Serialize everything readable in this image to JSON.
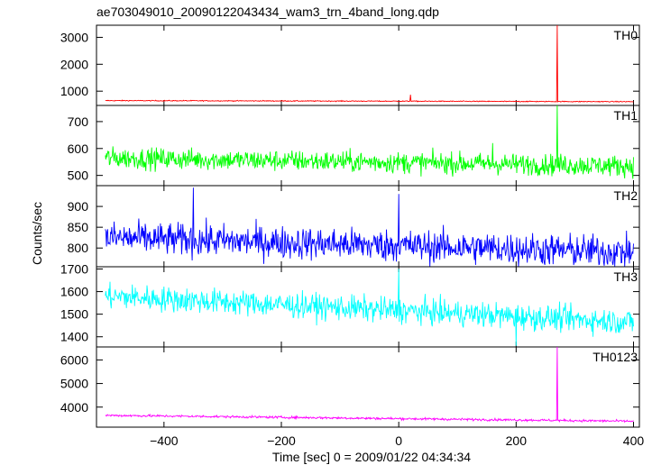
{
  "chart_data": {
    "type": "line",
    "title": "ae703049010_20090122043434_wam3_trn_4band_long.qdp",
    "xlabel": "Time [sec] 0 = 2009/01/22 04:34:34",
    "ylabel": "Counts/sec",
    "xlim": [
      -515,
      410
    ],
    "xticks": [
      -400,
      -200,
      0,
      200,
      400
    ],
    "xtick_labels": [
      "−400",
      "−200",
      "0",
      "200",
      "400"
    ],
    "x_start": -500,
    "x_end": 400,
    "grid": false,
    "panels": [
      {
        "name": "TH0",
        "color": "#ff0000",
        "ylim": [
          470,
          3450
        ],
        "yticks": [
          1000,
          2000,
          3000
        ],
        "ytick_labels": [
          "1000",
          "2000",
          "3000"
        ],
        "baseline_start": 650,
        "baseline_end": 610,
        "noise": 12,
        "spikes": [
          {
            "x": 20,
            "y": 870
          },
          {
            "x": 270,
            "y": 3450
          }
        ]
      },
      {
        "name": "TH1",
        "color": "#00ff00",
        "ylim": [
          462,
          760
        ],
        "yticks": [
          500,
          600,
          700
        ],
        "ytick_labels": [
          "500",
          "600",
          "700"
        ],
        "baseline_start": 565,
        "baseline_end": 535,
        "noise": 28,
        "spikes": [
          {
            "x": 270,
            "y": 760
          },
          {
            "x": 160,
            "y": 620
          }
        ]
      },
      {
        "name": "TH2",
        "color": "#0000ff",
        "ylim": [
          755,
          950
        ],
        "yticks": [
          800,
          850,
          900
        ],
        "ytick_labels": [
          "800",
          "850",
          "900"
        ],
        "baseline_start": 825,
        "baseline_end": 790,
        "noise": 28,
        "spikes": [
          {
            "x": -350,
            "y": 945
          },
          {
            "x": 0,
            "y": 930
          }
        ]
      },
      {
        "name": "TH3",
        "color": "#00ffff",
        "ylim": [
          1355,
          1710
        ],
        "yticks": [
          1400,
          1500,
          1600,
          1700
        ],
        "ytick_labels": [
          "1400",
          "1500",
          "1600",
          "1700"
        ],
        "baseline_start": 1580,
        "baseline_end": 1465,
        "noise": 40,
        "spikes": [
          {
            "x": 0,
            "y": 1700
          },
          {
            "x": 200,
            "y": 1360
          }
        ]
      },
      {
        "name": "TH0123",
        "color": "#ff00ff",
        "ylim": [
          3150,
          6550
        ],
        "yticks": [
          4000,
          5000,
          6000
        ],
        "ytick_labels": [
          "4000",
          "5000",
          "6000"
        ],
        "baseline_start": 3650,
        "baseline_end": 3400,
        "noise": 35,
        "spikes": [
          {
            "x": 270,
            "y": 6550
          }
        ]
      }
    ]
  }
}
